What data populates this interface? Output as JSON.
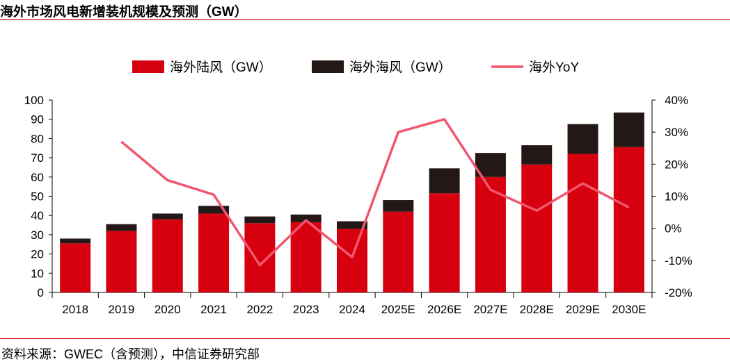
{
  "title": "海外市场风电新增装机规模及预测（GW）",
  "source": "资料来源：GWEC（含预测），中信证券研究部",
  "colors": {
    "onshore": "#d7000f",
    "offshore": "#231815",
    "yoy": "#f0576e",
    "rule": "#c00000"
  },
  "chart_data": {
    "type": "bar",
    "stacked": true,
    "categories": [
      "2018",
      "2019",
      "2020",
      "2021",
      "2022",
      "2023",
      "2024",
      "2025E",
      "2026E",
      "2027E",
      "2028E",
      "2029E",
      "2030E"
    ],
    "series": [
      {
        "name": "海外陆风（GW）",
        "axis": "left",
        "values": [
          25.5,
          32,
          38,
          41,
          36,
          36.5,
          33,
          42,
          51.5,
          60,
          66.5,
          72,
          75.5
        ]
      },
      {
        "name": "海外海风（GW）",
        "axis": "left",
        "values": [
          2.5,
          3.5,
          3,
          4,
          3.5,
          4,
          4,
          6,
          13,
          12.5,
          10,
          15.5,
          18
        ]
      },
      {
        "name": "海外YoY",
        "type": "line",
        "axis": "right",
        "values": [
          null,
          27,
          15,
          10.5,
          -11.5,
          2.5,
          -9,
          30,
          34,
          12,
          5.5,
          14,
          6.5
        ]
      }
    ],
    "yleft": {
      "min": 0,
      "max": 100,
      "ticks": [
        "0",
        "10",
        "20",
        "30",
        "40",
        "50",
        "60",
        "70",
        "80",
        "90",
        "100"
      ]
    },
    "yright": {
      "min": -20,
      "max": 40,
      "ticks": [
        "-20%",
        "-10%",
        "0%",
        "10%",
        "20%",
        "30%",
        "40%"
      ]
    },
    "legend_position": "top"
  }
}
